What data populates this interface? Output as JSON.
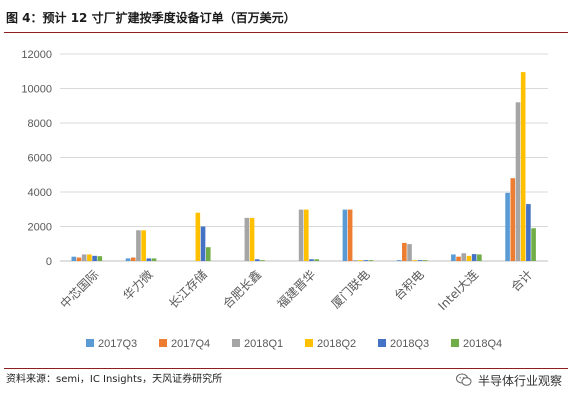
{
  "header": {
    "title": "图 4：预计 12 寸厂扩建按季度设备订单（百万美元）"
  },
  "footer": {
    "source": "资料来源：semi，IC Insights，天风证券研究所"
  },
  "watermark": {
    "label": "半导体行业观察",
    "icon": "wechat-icon"
  },
  "chart_data": {
    "type": "bar",
    "title": "",
    "xlabel": "",
    "ylabel": "",
    "ylim": [
      0,
      12000
    ],
    "yticks": [
      0,
      2000,
      4000,
      6000,
      8000,
      10000,
      12000
    ],
    "grid": true,
    "legend": "bottom",
    "categories": [
      "中芯国际",
      "华力微",
      "长江存储",
      "合肥长鑫",
      "福建晋华",
      "厦门联电",
      "台积电",
      "Intel大连",
      "合计"
    ],
    "series": [
      {
        "name": "2017Q3",
        "color": "#5b9bd5",
        "values": [
          250,
          150,
          0,
          0,
          0,
          2980,
          50,
          380,
          3950
        ]
      },
      {
        "name": "2017Q4",
        "color": "#ed7d31",
        "values": [
          200,
          200,
          0,
          0,
          0,
          2980,
          1050,
          250,
          4800
        ]
      },
      {
        "name": "2018Q1",
        "color": "#a5a5a5",
        "values": [
          380,
          1780,
          0,
          2500,
          2980,
          50,
          980,
          450,
          9200
        ]
      },
      {
        "name": "2018Q2",
        "color": "#ffc000",
        "values": [
          380,
          1780,
          2800,
          2500,
          2980,
          50,
          50,
          300,
          10950
        ]
      },
      {
        "name": "2018Q3",
        "color": "#4472c4",
        "values": [
          300,
          150,
          2000,
          100,
          100,
          50,
          50,
          400,
          3300
        ]
      },
      {
        "name": "2018Q4",
        "color": "#70ad47",
        "values": [
          280,
          150,
          800,
          50,
          100,
          50,
          50,
          380,
          1900
        ]
      }
    ]
  }
}
